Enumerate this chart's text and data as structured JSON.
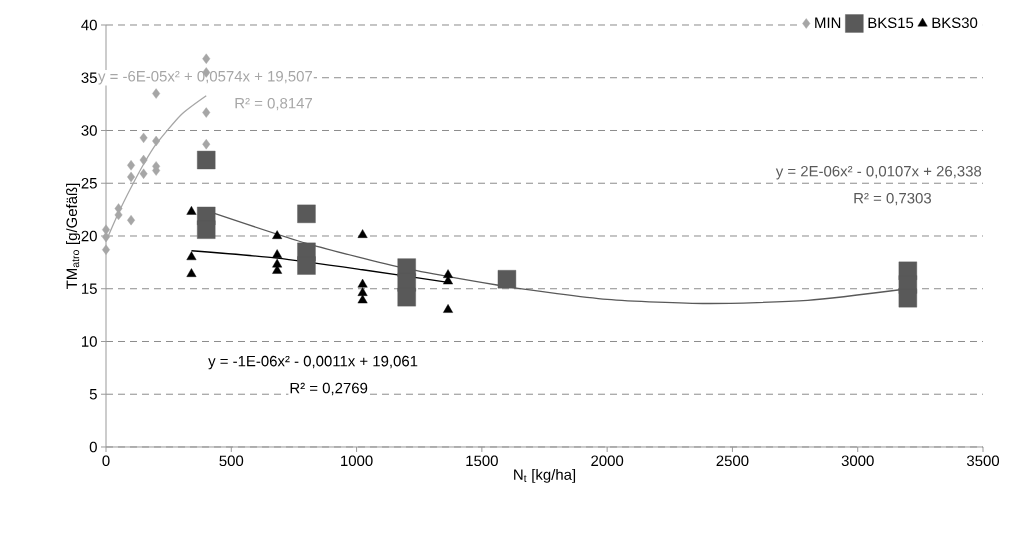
{
  "chart_data": {
    "type": "scatter",
    "xlabel": "N$_{t}$ [kg/ha]",
    "ylabel": "TM$_{atro}$ [g/Gefäß]",
    "xlim": [
      0,
      3500
    ],
    "xticks": [
      0,
      500,
      1000,
      1500,
      2000,
      2500,
      3000,
      3500
    ],
    "ylim": [
      0,
      40
    ],
    "yticks": [
      0,
      5,
      10,
      15,
      20,
      25,
      30,
      35,
      40
    ],
    "grid": "y",
    "legend": "top right",
    "series": [
      {
        "name": "MIN",
        "color": "#a6a6a6",
        "marker": "diamond",
        "x": [
          0,
          0,
          0,
          50,
          50,
          100,
          100,
          100,
          150,
          150,
          150,
          200,
          200,
          200,
          200,
          400,
          400,
          400,
          400
        ],
        "values": [
          20.6,
          19.9,
          18.7,
          22.6,
          22.0,
          21.5,
          26.7,
          25.6,
          29.3,
          27.2,
          25.9,
          33.5,
          29.0,
          26.6,
          26.2,
          36.8,
          35.5,
          31.7,
          28.7
        ]
      },
      {
        "name": "BKS15",
        "color": "#595959",
        "marker": "square",
        "x": [
          400,
          400,
          400,
          800,
          800,
          800,
          1200,
          1200,
          1200,
          1600,
          3200,
          3200,
          3200
        ],
        "values": [
          27.2,
          21.9,
          20.6,
          22.1,
          18.5,
          17.2,
          17.0,
          15.6,
          14.2,
          15.9,
          16.7,
          15.4,
          14.1
        ]
      },
      {
        "name": "BKS30",
        "color": "#000000",
        "marker": "triangle",
        "x": [
          341,
          341,
          341,
          683,
          683,
          683,
          683,
          1024,
          1024,
          1024,
          1024,
          1365,
          1365,
          1365
        ],
        "values": [
          22.3,
          18.0,
          16.4,
          20.0,
          18.2,
          17.3,
          16.7,
          20.1,
          15.4,
          14.6,
          13.9,
          16.3,
          15.7,
          13.0
        ]
      },
      {
        "type": "line",
        "color": "#a6a6a6",
        "marker": "none",
        "x": [
          0,
          50,
          100,
          150,
          200,
          300,
          400
        ],
        "values": [
          19.5,
          22.2,
          24.6,
          26.8,
          28.7,
          31.5,
          33.3
        ]
      },
      {
        "type": "line",
        "color": "#595959",
        "marker": "none",
        "x": [
          400,
          800,
          1200,
          1600,
          2000,
          2400,
          2800,
          3200
        ],
        "values": [
          22.4,
          19.3,
          16.9,
          15.2,
          14.0,
          13.6,
          13.9,
          15.0
        ]
      },
      {
        "type": "line",
        "color": "#000000",
        "marker": "none",
        "x": [
          341,
          683,
          1024,
          1365
        ],
        "values": [
          18.6,
          17.9,
          16.8,
          15.6
        ]
      }
    ],
    "annotations": [
      "y = -6E-05x² + 0,0574x + 19,507",
      "R² = 0,8147",
      "y = 2E-06x² - 0,0107x + 26,338",
      "R² = 0,7303",
      "y = -1E-06x² - 0,0011x + 19,061",
      "R² = 0,2769"
    ]
  }
}
